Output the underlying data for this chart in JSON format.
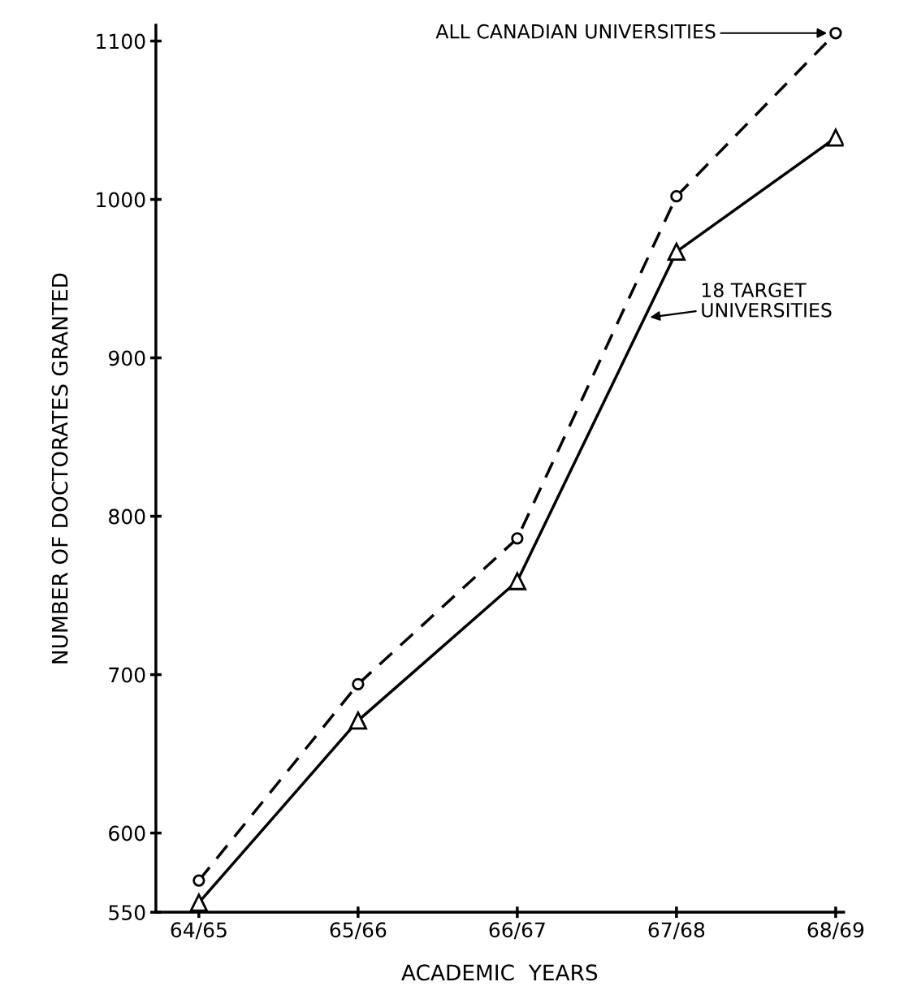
{
  "chart_data": {
    "type": "line",
    "xlabel": "ACADEMIC  YEARS",
    "ylabel": "NUMBER OF DOCTORATES GRANTED",
    "categories": [
      "64/65",
      "65/66",
      "66/67",
      "67/68",
      "68/69"
    ],
    "series": [
      {
        "name": "ALL CANADIAN UNIVERSITIES",
        "color": "#000000",
        "marker": "circle",
        "line_style": "dashed",
        "values": [
          570,
          694,
          786,
          1002,
          1105
        ]
      },
      {
        "name": "18 TARGET\nUNIVERSITIES",
        "color": "#000000",
        "marker": "triangle",
        "line_style": "solid",
        "values": [
          556,
          671,
          759,
          967,
          1039
        ]
      }
    ],
    "ylim": [
      550,
      1110
    ],
    "yticks": [
      550,
      600,
      700,
      800,
      900,
      1000,
      1100
    ],
    "grid": false,
    "legend": false
  }
}
